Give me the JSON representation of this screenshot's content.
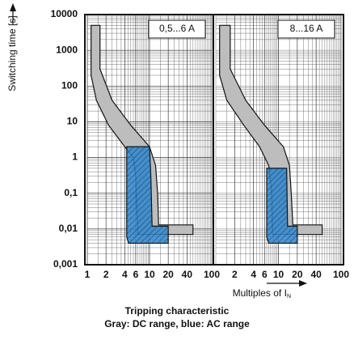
{
  "chart_data": [
    {
      "type": "band",
      "annotation": "0,5...6 A",
      "ylabel": "Switching time [s]",
      "log_x": true,
      "log_y": true,
      "xlim": [
        1,
        100
      ],
      "xticks": [
        1,
        2,
        4,
        6,
        10,
        20,
        40,
        100
      ],
      "ylim": [
        0.001,
        10000
      ],
      "yticks": [
        10000,
        {
          "value": 1000,
          "label": "1000"
        },
        100,
        10,
        1,
        {
          "value": 0.1,
          "label": "0,1"
        },
        {
          "value": 0.01,
          "label": "0,01"
        },
        {
          "value": 0.001,
          "label": "0,001"
        }
      ],
      "bands": [
        {
          "color": "#bdbdbd",
          "x": [
            1.15,
            1.15,
            1.4,
            2.2,
            4,
            5.5,
            6,
            6.2,
            6.5,
            50,
            50,
            14,
            13.5,
            12.5,
            10,
            5,
            2.5,
            1.6,
            1.6
          ],
          "values": [
            5000,
            200,
            40,
            8,
            2,
            1,
            0.3,
            0.05,
            0.007,
            0.007,
            0.013,
            0.013,
            0.1,
            0.6,
            2,
            8,
            40,
            300,
            5000
          ]
        },
        {
          "color": "#2f86cc",
          "x": [
            4.3,
            4.3,
            4.6,
            20,
            20,
            11,
            10.5,
            10
          ],
          "values": [
            2,
            0.006,
            0.004,
            0.004,
            0.012,
            0.012,
            0.3,
            2
          ]
        }
      ]
    },
    {
      "type": "band",
      "annotation": "8...16 A",
      "log_x": true,
      "log_y": true,
      "xlim": [
        1,
        100
      ],
      "xticks": [
        2,
        4,
        6,
        10,
        20,
        40,
        100
      ],
      "ylim": [
        0.001,
        10000
      ],
      "bands": [
        {
          "color": "#bdbdbd",
          "x": [
            1.15,
            1.15,
            1.5,
            2.8,
            5,
            7,
            7.8,
            8,
            50,
            50,
            17,
            16,
            15,
            12,
            6,
            3,
            1.7,
            1.7
          ],
          "values": [
            5000,
            200,
            40,
            8,
            2,
            0.6,
            0.1,
            0.007,
            0.007,
            0.013,
            0.013,
            0.1,
            0.6,
            2,
            8,
            40,
            300,
            5000
          ]
        },
        {
          "color": "#2f86cc",
          "x": [
            6.5,
            6.5,
            7,
            20,
            20,
            14,
            13.5
          ],
          "values": [
            0.5,
            0.006,
            0.004,
            0.004,
            0.012,
            0.012,
            0.5
          ]
        }
      ]
    }
  ],
  "xlabel": "Multiples of I",
  "xlabel_sub": "N",
  "title": "Tripping characteristic",
  "subtitle": "Gray: DC range, blue: AC range"
}
